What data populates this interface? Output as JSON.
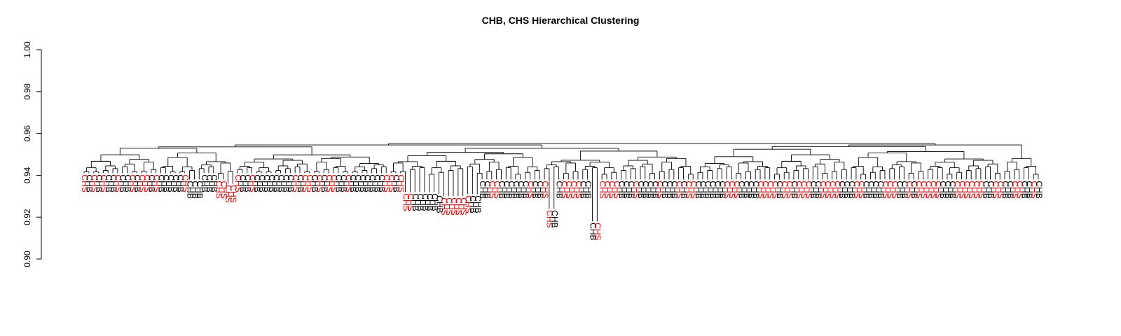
{
  "chart_data": {
    "type": "dendrogram",
    "title": "CHB, CHS Hierarchical Clustering",
    "xlabel": "",
    "ylabel": "",
    "ylim": [
      0.9,
      1.0
    ],
    "y_ticks": [
      0.9,
      0.92,
      0.94,
      0.96,
      0.98,
      1.0
    ],
    "y_tick_labels": [
      "0.90",
      "0.92",
      "0.94",
      "0.96",
      "0.98",
      "1.00"
    ],
    "grid": false,
    "colors": {
      "CHB": "#000000",
      "CHS": "#ff0000",
      "branches": "#000000"
    },
    "groups": [
      "CHB",
      "CHS"
    ],
    "leaf_count": 200,
    "root_height": 0.955,
    "leaves": [
      "CHS",
      "CHB",
      "CHS",
      "CHB",
      "CHS",
      "CHB",
      "CHB",
      "CHS",
      "CHB",
      "CHB",
      "CHS",
      "CHB",
      "CHS",
      "CHS",
      "CHB",
      "CHS",
      "CHB",
      "CHB",
      "CHB",
      "CHB",
      "CHB",
      "CHS",
      "CHB",
      "CHB",
      "CHB",
      "CHB",
      "CHB",
      "CHB",
      "CHS",
      "CHS",
      "CHS",
      "CHS",
      "CHS",
      "CHB",
      "CHB",
      "CHS",
      "CHB",
      "CHB",
      "CHB",
      "CHB",
      "CHB",
      "CHB",
      "CHB",
      "CHB",
      "CHS",
      "CHB",
      "CHS",
      "CHS",
      "CHB",
      "CHS",
      "CHB",
      "CHS",
      "CHS",
      "CHB",
      "CHB",
      "CHS",
      "CHB",
      "CHB",
      "CHB",
      "CHB",
      "CHB",
      "CHB",
      "CHB",
      "CHS",
      "CHS",
      "CHB",
      "CHS",
      "CHS",
      "CHS",
      "CHB",
      "CHB",
      "CHB",
      "CHB",
      "CHB",
      "CHB",
      "CHS",
      "CHS",
      "CHS",
      "CHS",
      "CHS",
      "CHS",
      "CHB",
      "CHB",
      "CHB",
      "CHB",
      "CHS",
      "CHS",
      "CHB",
      "CHB",
      "CHB",
      "CHB",
      "CHB",
      "CHB",
      "CHS",
      "CHB",
      "CHB",
      "CHS",
      "CHS",
      "CHB",
      "CHB",
      "CHS",
      "CHS",
      "CHS",
      "CHS",
      "CHB",
      "CHB",
      "CHB",
      "CHS",
      "CHS",
      "CHS",
      "CHS",
      "CHS",
      "CHB",
      "CHB",
      "CHB",
      "CHS",
      "CHB",
      "CHB",
      "CHB",
      "CHB",
      "CHS",
      "CHB",
      "CHB",
      "CHB",
      "CHS",
      "CHB",
      "CHS",
      "CHS",
      "CHB",
      "CHB",
      "CHB",
      "CHB",
      "CHB",
      "CHB",
      "CHS",
      "CHS",
      "CHS",
      "CHB",
      "CHB",
      "CHB",
      "CHB",
      "CHS",
      "CHS",
      "CHS",
      "CHS",
      "CHB",
      "CHS",
      "CHS",
      "CHB",
      "CHS",
      "CHS",
      "CHS",
      "CHB",
      "CHB",
      "CHS",
      "CHS",
      "CHS",
      "CHS",
      "CHB",
      "CHB",
      "CHB",
      "CHS",
      "CHS",
      "CHB",
      "CHB",
      "CHB",
      "CHB",
      "CHS",
      "CHS",
      "CHS",
      "CHB",
      "CHB",
      "CHS",
      "CHB",
      "CHS",
      "CHS",
      "CHS",
      "CHS",
      "CHS",
      "CHB",
      "CHB",
      "CHB",
      "CHS",
      "CHS",
      "CHS",
      "CHS",
      "CHS",
      "CHS",
      "CHB",
      "CHB",
      "CHS",
      "CHS",
      "CHB",
      "CHB",
      "CHS",
      "CHS",
      "CHB",
      "CHB",
      "CHS",
      "CHB"
    ],
    "leaf_heights": [
      0.941,
      0.941,
      0.941,
      0.941,
      0.941,
      0.941,
      0.941,
      0.941,
      0.941,
      0.941,
      0.941,
      0.941,
      0.941,
      0.941,
      0.941,
      0.941,
      0.941,
      0.941,
      0.941,
      0.941,
      0.941,
      0.941,
      0.938,
      0.938,
      0.938,
      0.941,
      0.941,
      0.941,
      0.938,
      0.938,
      0.936,
      0.936,
      0.941,
      0.941,
      0.941,
      0.941,
      0.941,
      0.941,
      0.941,
      0.941,
      0.941,
      0.941,
      0.941,
      0.941,
      0.941,
      0.941,
      0.941,
      0.941,
      0.941,
      0.941,
      0.941,
      0.941,
      0.941,
      0.941,
      0.941,
      0.941,
      0.941,
      0.941,
      0.941,
      0.941,
      0.941,
      0.941,
      0.941,
      0.941,
      0.941,
      0.941,
      0.941,
      0.932,
      0.932,
      0.932,
      0.932,
      0.932,
      0.932,
      0.932,
      0.931,
      0.93,
      0.93,
      0.93,
      0.93,
      0.93,
      0.931,
      0.931,
      0.931,
      0.938,
      0.938,
      0.938,
      0.938,
      0.938,
      0.938,
      0.938,
      0.938,
      0.938,
      0.938,
      0.938,
      0.938,
      0.938,
      0.938,
      0.924,
      0.924,
      0.938,
      0.938,
      0.938,
      0.938,
      0.938,
      0.938,
      0.938,
      0.918,
      0.918,
      0.938,
      0.938,
      0.938,
      0.938,
      0.938,
      0.938,
      0.938,
      0.938,
      0.938,
      0.938,
      0.938,
      0.938,
      0.938,
      0.938,
      0.938,
      0.938,
      0.938,
      0.938,
      0.938,
      0.938,
      0.938,
      0.938,
      0.938,
      0.938,
      0.938,
      0.938,
      0.938,
      0.938,
      0.938,
      0.938,
      0.938,
      0.938,
      0.938,
      0.938,
      0.938,
      0.938,
      0.938,
      0.938,
      0.938,
      0.938,
      0.938,
      0.938,
      0.938,
      0.938,
      0.938,
      0.938,
      0.938,
      0.938,
      0.938,
      0.938,
      0.938,
      0.938,
      0.938,
      0.938,
      0.938,
      0.938,
      0.938,
      0.938,
      0.938,
      0.938,
      0.938,
      0.938,
      0.938,
      0.938,
      0.938,
      0.938,
      0.938,
      0.938,
      0.938,
      0.938,
      0.938,
      0.938,
      0.938,
      0.938,
      0.938,
      0.938,
      0.938,
      0.938,
      0.938,
      0.938,
      0.938,
      0.938,
      0.938,
      0.938,
      0.938,
      0.938,
      0.938,
      0.938,
      0.938,
      0.938,
      0.938,
      0.938
    ]
  }
}
